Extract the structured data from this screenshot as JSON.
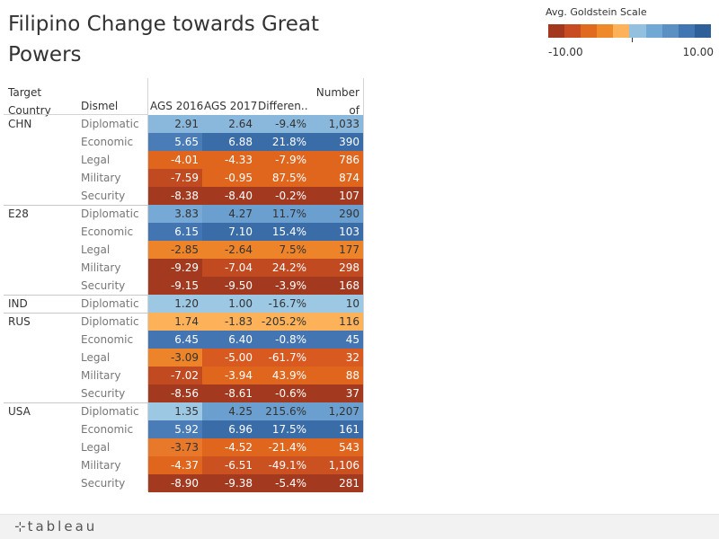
{
  "title": "Filipino Change towards Great Powers",
  "legend": {
    "title": "Avg. Goldstein Scale",
    "min_label": "-10.00",
    "max_label": "10.00",
    "colors": [
      "#a2391f",
      "#c84c22",
      "#e06a1e",
      "#ee8a2a",
      "#fdb25a",
      "#92c0de",
      "#72a8d4",
      "#5a90c2",
      "#4276b2",
      "#2f5f98"
    ]
  },
  "headers": {
    "target_country": "Target Country",
    "dismel": "Dismel",
    "ags2016": "AGS 2016",
    "ags2017": "AGS 2017",
    "difference": "Differen..",
    "records": "Number of Recor.."
  },
  "footer": {
    "brand": "tableau"
  },
  "chart_data": {
    "type": "table",
    "title": "Filipino Change towards Great Powers",
    "columns": [
      "Target Country",
      "Dismel",
      "AGS 2016",
      "AGS 2017",
      "Difference",
      "Number of Records"
    ],
    "groups": [
      {
        "country": "CHN",
        "rows": [
          {
            "dismel": "Diplomatic",
            "ags2016": "2.91",
            "ags2017": "2.64",
            "diff": "-9.4%",
            "records": "1,033",
            "c16": "#8ab8dd",
            "c17": "#8ab8dd",
            "cdiff": "#8ab8dd",
            "crec": "#8ab8dd"
          },
          {
            "dismel": "Economic",
            "ags2016": "5.65",
            "ags2017": "6.88",
            "diff": "21.8%",
            "records": "390",
            "c16": "#4a7db8",
            "c17": "#3a6ca8",
            "cdiff": "#3a6ca8",
            "crec": "#3a6ca8"
          },
          {
            "dismel": "Legal",
            "ags2016": "-4.01",
            "ags2017": "-4.33",
            "diff": "-7.9%",
            "records": "786",
            "c16": "#e0661e",
            "c17": "#e0661e",
            "cdiff": "#e0661e",
            "crec": "#e0661e"
          },
          {
            "dismel": "Military",
            "ags2016": "-7.59",
            "ags2017": "-0.95",
            "diff": "87.5%",
            "records": "874",
            "c16": "#c14a21",
            "c17": "#e0661e",
            "cdiff": "#e0661e",
            "crec": "#e0661e"
          },
          {
            "dismel": "Security",
            "ags2016": "-8.38",
            "ags2017": "-8.40",
            "diff": "-0.2%",
            "records": "107",
            "c16": "#a33a1f",
            "c17": "#a33a1f",
            "cdiff": "#a33a1f",
            "crec": "#a33a1f"
          }
        ]
      },
      {
        "country": "E28",
        "rows": [
          {
            "dismel": "Diplomatic",
            "ags2016": "3.83",
            "ags2017": "4.27",
            "diff": "11.7%",
            "records": "290",
            "c16": "#76a9d6",
            "c17": "#6b9fcf",
            "cdiff": "#6b9fcf",
            "crec": "#6b9fcf"
          },
          {
            "dismel": "Economic",
            "ags2016": "6.15",
            "ags2017": "7.10",
            "diff": "15.4%",
            "records": "103",
            "c16": "#4275b2",
            "c17": "#3a6ca8",
            "cdiff": "#3a6ca8",
            "crec": "#3a6ca8"
          },
          {
            "dismel": "Legal",
            "ags2016": "-2.85",
            "ags2017": "-2.64",
            "diff": "7.5%",
            "records": "177",
            "c16": "#ee8429",
            "c17": "#ee8429",
            "cdiff": "#ee8429",
            "crec": "#ee8429"
          },
          {
            "dismel": "Military",
            "ags2016": "-9.29",
            "ags2017": "-7.04",
            "diff": "24.2%",
            "records": "298",
            "c16": "#a33a1f",
            "c17": "#c14a21",
            "cdiff": "#c14a21",
            "crec": "#c14a21"
          },
          {
            "dismel": "Security",
            "ags2016": "-9.15",
            "ags2017": "-9.50",
            "diff": "-3.9%",
            "records": "168",
            "c16": "#a33a1f",
            "c17": "#a33a1f",
            "cdiff": "#a33a1f",
            "crec": "#a33a1f"
          }
        ]
      },
      {
        "country": "IND",
        "rows": [
          {
            "dismel": "Diplomatic",
            "ags2016": "1.20",
            "ags2017": "1.00",
            "diff": "-16.7%",
            "records": "10",
            "c16": "#9cc8e4",
            "c17": "#9cc8e4",
            "cdiff": "#9cc8e4",
            "crec": "#9cc8e4"
          }
        ]
      },
      {
        "country": "RUS",
        "rows": [
          {
            "dismel": "Diplomatic",
            "ags2016": "1.74",
            "ags2017": "-1.83",
            "diff": "-205.2%",
            "records": "116",
            "c16": "#fdb25a",
            "c17": "#fdb25a",
            "cdiff": "#fdb25a",
            "crec": "#fdb25a"
          },
          {
            "dismel": "Economic",
            "ags2016": "6.45",
            "ags2017": "6.40",
            "diff": "-0.8%",
            "records": "45",
            "c16": "#4275b2",
            "c17": "#4275b2",
            "cdiff": "#4275b2",
            "crec": "#4275b2"
          },
          {
            "dismel": "Legal",
            "ags2016": "-3.09",
            "ags2017": "-5.00",
            "diff": "-61.7%",
            "records": "32",
            "c16": "#ee8429",
            "c17": "#d95a20",
            "cdiff": "#d95a20",
            "crec": "#d95a20"
          },
          {
            "dismel": "Military",
            "ags2016": "-7.02",
            "ags2017": "-3.94",
            "diff": "43.9%",
            "records": "88",
            "c16": "#c14a21",
            "c17": "#e0661e",
            "cdiff": "#e0661e",
            "crec": "#e0661e"
          },
          {
            "dismel": "Security",
            "ags2016": "-8.56",
            "ags2017": "-8.61",
            "diff": "-0.6%",
            "records": "37",
            "c16": "#a33a1f",
            "c17": "#a33a1f",
            "cdiff": "#a33a1f",
            "crec": "#a33a1f"
          }
        ]
      },
      {
        "country": "USA",
        "rows": [
          {
            "dismel": "Diplomatic",
            "ags2016": "1.35",
            "ags2017": "4.25",
            "diff": "215.6%",
            "records": "1,207",
            "c16": "#9cc8e4",
            "c17": "#6b9fcf",
            "cdiff": "#6b9fcf",
            "crec": "#6b9fcf"
          },
          {
            "dismel": "Economic",
            "ags2016": "5.92",
            "ags2017": "6.96",
            "diff": "17.5%",
            "records": "161",
            "c16": "#4a7db8",
            "c17": "#3a6ca8",
            "cdiff": "#3a6ca8",
            "crec": "#3a6ca8"
          },
          {
            "dismel": "Legal",
            "ags2016": "-3.73",
            "ags2017": "-4.52",
            "diff": "-21.4%",
            "records": "543",
            "c16": "#e8782a",
            "c17": "#e0661e",
            "cdiff": "#e0661e",
            "crec": "#e0661e"
          },
          {
            "dismel": "Military",
            "ags2016": "-4.37",
            "ags2017": "-6.51",
            "diff": "-49.1%",
            "records": "1,106",
            "c16": "#e0661e",
            "c17": "#cb5121",
            "cdiff": "#cb5121",
            "crec": "#cb5121"
          },
          {
            "dismel": "Security",
            "ags2016": "-8.90",
            "ags2017": "-9.38",
            "diff": "-5.4%",
            "records": "281",
            "c16": "#a33a1f",
            "c17": "#a33a1f",
            "cdiff": "#a33a1f",
            "crec": "#a33a1f"
          }
        ]
      }
    ]
  }
}
